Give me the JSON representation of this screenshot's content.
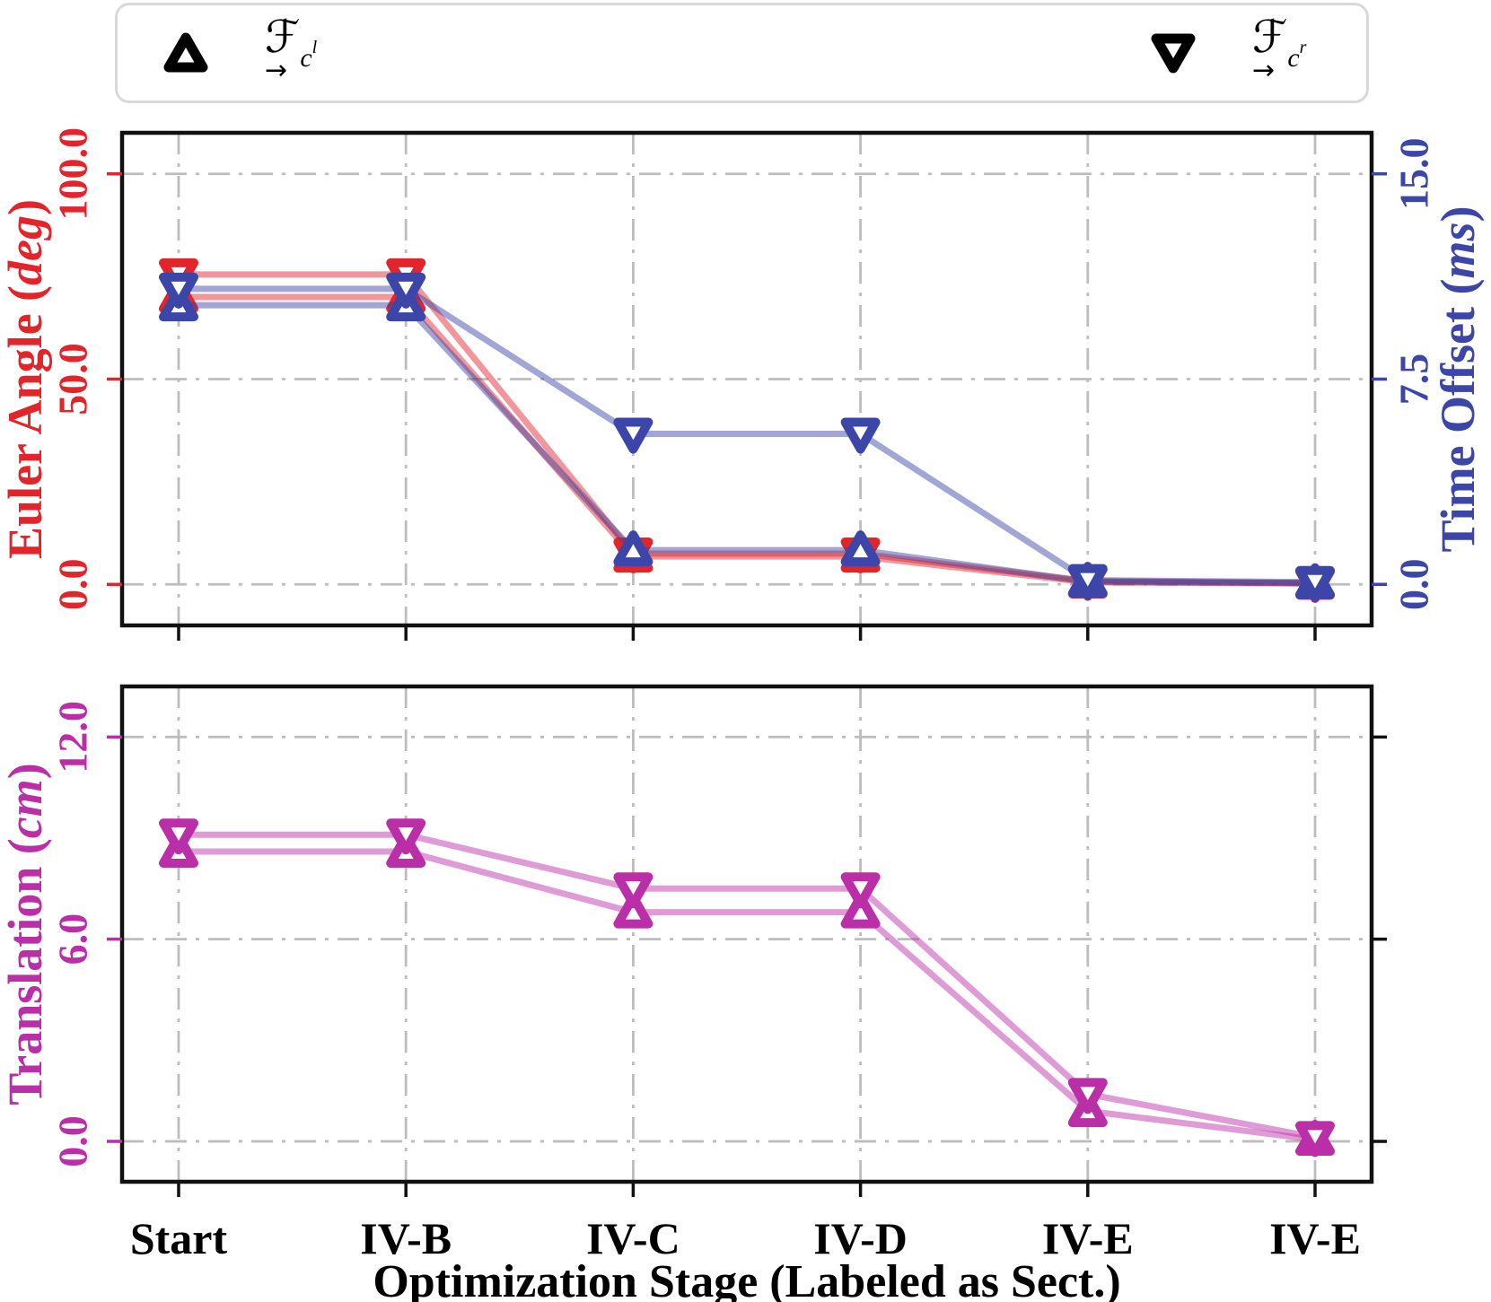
{
  "legend": {
    "items": [
      {
        "marker": "triangle-up",
        "symbol": "ℱ",
        "arrow": "→",
        "sub": "c",
        "sup": "l"
      },
      {
        "marker": "triangle-down",
        "symbol": "ℱ",
        "arrow": "→",
        "sub": "c",
        "sup": "r"
      }
    ]
  },
  "xaxis": {
    "label": "Optimization Stage (Labeled as Sect.)",
    "categories": [
      "Start",
      "IV-B",
      "IV-C",
      "IV-D",
      "IV-E",
      "IV-E"
    ]
  },
  "colors": {
    "euler": "#e2242b",
    "time": "#3b46a8",
    "translation": "#ba2fa7",
    "grid": "#bdbdbd",
    "spine": "#111111"
  },
  "chart_data": [
    {
      "type": "line",
      "categories": [
        "Start",
        "IV-B",
        "IV-C",
        "IV-D",
        "IV-E",
        "IV-E"
      ],
      "left_axis": {
        "label": "Euler Angle",
        "unit": "deg",
        "color": "#e2242b",
        "ticks": [
          0,
          50,
          100
        ],
        "tick_labels": [
          "0.0",
          "50.0",
          "100.0"
        ],
        "range": [
          -10,
          110
        ]
      },
      "right_axis": {
        "label": "Time Offset",
        "unit": "ms",
        "color": "#3b46a8",
        "ticks": [
          0,
          7.5,
          15
        ],
        "tick_labels": [
          "0.0",
          "7.5",
          "15.0"
        ],
        "range": [
          -1.5,
          16.5
        ]
      },
      "series": [
        {
          "name": "euler-angle-left-cam",
          "axis": "left",
          "marker": "triangle-up",
          "color": "#e2242b",
          "values": [
            70.0,
            70.0,
            6.8,
            6.8,
            0.5,
            0.2
          ]
        },
        {
          "name": "euler-angle-right-cam",
          "axis": "left",
          "marker": "triangle-down",
          "color": "#e2242b",
          "values": [
            75.5,
            75.5,
            7.5,
            7.5,
            0.8,
            0.3
          ]
        },
        {
          "name": "time-offset-left-cam",
          "axis": "right",
          "marker": "triangle-up",
          "color": "#3b46a8",
          "values": [
            10.2,
            10.2,
            1.25,
            1.25,
            0.1,
            0.05
          ]
        },
        {
          "name": "time-offset-right-cam",
          "axis": "right",
          "marker": "triangle-down",
          "color": "#3b46a8",
          "values": [
            10.8,
            10.8,
            5.5,
            5.5,
            0.15,
            0.08
          ]
        }
      ]
    },
    {
      "type": "line",
      "categories": [
        "Start",
        "IV-B",
        "IV-C",
        "IV-D",
        "IV-E",
        "IV-E"
      ],
      "left_axis": {
        "label": "Translation",
        "unit": "cm",
        "color": "#ba2fa7",
        "ticks": [
          0,
          6,
          12
        ],
        "tick_labels": [
          "0.0",
          "6.0",
          "12.0"
        ],
        "range": [
          -1.2,
          13.5
        ]
      },
      "series": [
        {
          "name": "translation-left-cam",
          "axis": "left",
          "marker": "triangle-up",
          "color": "#ba2fa7",
          "values": [
            8.6,
            8.6,
            6.8,
            6.8,
            0.9,
            0.05
          ]
        },
        {
          "name": "translation-right-cam",
          "axis": "left",
          "marker": "triangle-down",
          "color": "#ba2fa7",
          "values": [
            9.1,
            9.1,
            7.5,
            7.5,
            1.4,
            0.12
          ]
        }
      ]
    }
  ]
}
